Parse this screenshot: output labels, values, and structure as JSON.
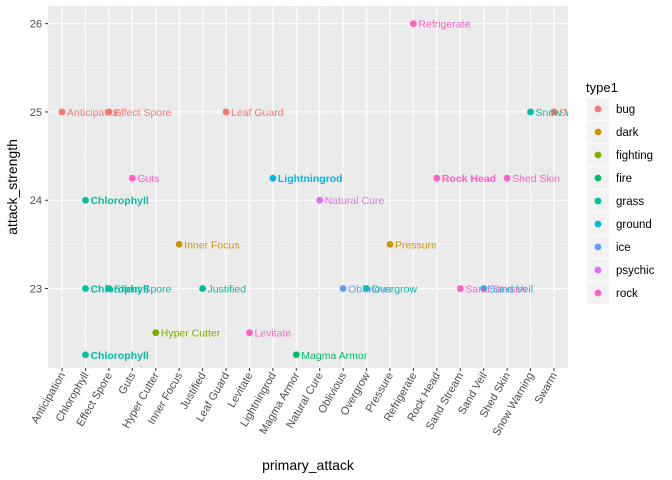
{
  "chart_data": {
    "type": "scatter",
    "xlabel": "primary_attack",
    "ylabel": "attack_strength",
    "categories": [
      "Anticipation",
      "Chlorophyll",
      "Effect Spore",
      "Guts",
      "Hyper Cutter",
      "Inner Focus",
      "Justified",
      "Leaf Guard",
      "Levitate",
      "Lightningrod",
      "Magma Armor",
      "Natural Cure",
      "Oblivious",
      "Overgrow",
      "Pressure",
      "Refrigerate",
      "Rock Head",
      "Sand Stream",
      "Sand Veil",
      "Shed Skin",
      "Snow Warning",
      "Swarm"
    ],
    "ylim": [
      22.1,
      26.2
    ],
    "yticks": [
      23,
      24,
      25,
      26
    ],
    "grid": true,
    "legend": {
      "title": "type1",
      "position": "right",
      "entries": [
        {
          "name": "bug",
          "color": "#F8766D"
        },
        {
          "name": "dark",
          "color": "#CD9600"
        },
        {
          "name": "fighting",
          "color": "#7CAE00"
        },
        {
          "name": "fire",
          "color": "#00BE67"
        },
        {
          "name": "grass",
          "color": "#00BFA0"
        },
        {
          "name": "ground",
          "color": "#00B8E7"
        },
        {
          "name": "ice",
          "color": "#619CFF"
        },
        {
          "name": "psychic",
          "color": "#E26EF7"
        },
        {
          "name": "rock",
          "color": "#FF61C3"
        }
      ]
    },
    "points": [
      {
        "x": "Anticipation",
        "y": 25,
        "type": "bug",
        "label": "Anticipation",
        "bold": false
      },
      {
        "x": "Effect Spore",
        "y": 25,
        "type": "bug",
        "label": "Effect Spore",
        "bold": false
      },
      {
        "x": "Leaf Guard",
        "y": 25,
        "type": "bug",
        "label": "Leaf Guard",
        "bold": false
      },
      {
        "x": "Swarm",
        "y": 25,
        "type": "bug",
        "label": "Swarm",
        "bold": false
      },
      {
        "x": "Inner Focus",
        "y": 23.5,
        "type": "dark",
        "label": "Inner Focus",
        "bold": false
      },
      {
        "x": "Pressure",
        "y": 23.5,
        "type": "dark",
        "label": "Pressure",
        "bold": false
      },
      {
        "x": "Hyper Cutter",
        "y": 22.5,
        "type": "fighting",
        "label": "Hyper Cutter",
        "bold": false
      },
      {
        "x": "Magma Armor",
        "y": 22.25,
        "type": "fire",
        "label": "Magma Armor",
        "bold": false
      },
      {
        "x": "Chlorophyll",
        "y": 24,
        "type": "grass",
        "label": "Chlorophyll",
        "bold": true
      },
      {
        "x": "Chlorophyll",
        "y": 23,
        "type": "grass",
        "label": "Chlorophyll",
        "bold": true
      },
      {
        "x": "Chlorophyll",
        "y": 22.25,
        "type": "grass",
        "label": "Chlorophyll",
        "bold": true
      },
      {
        "x": "Effect Spore",
        "y": 23,
        "type": "grass",
        "label": "Effect Spore",
        "bold": false
      },
      {
        "x": "Justified",
        "y": 23,
        "type": "grass",
        "label": "Justified",
        "bold": false
      },
      {
        "x": "Overgrow",
        "y": 23,
        "type": "grass",
        "label": "Overgrow",
        "bold": false
      },
      {
        "x": "Snow Warning",
        "y": 25,
        "type": "grass",
        "label": "Snow Warning",
        "bold": false
      },
      {
        "x": "Lightningrod",
        "y": 24.25,
        "type": "ground",
        "label": "Lightningrod",
        "bold": true
      },
      {
        "x": "Sand Veil",
        "y": 23,
        "type": "ground",
        "label": "Sand Veil",
        "bold": false
      },
      {
        "x": "Oblivious",
        "y": 23,
        "type": "ice",
        "label": "Oblivious",
        "bold": false
      },
      {
        "x": "Natural Cure",
        "y": 24,
        "type": "psychic",
        "label": "Natural Cure",
        "bold": false
      },
      {
        "x": "Guts",
        "y": 24.25,
        "type": "rock",
        "label": "Guts",
        "bold": false
      },
      {
        "x": "Levitate",
        "y": 22.5,
        "type": "rock",
        "label": "Levitate",
        "bold": false
      },
      {
        "x": "Refrigerate",
        "y": 26,
        "type": "rock",
        "label": "Refrigerate",
        "bold": false
      },
      {
        "x": "Rock Head",
        "y": 24.25,
        "type": "rock",
        "label": "Rock Head",
        "bold": true
      },
      {
        "x": "Sand Stream",
        "y": 23,
        "type": "rock",
        "label": "Sand Stream",
        "bold": false
      },
      {
        "x": "Shed Skin",
        "y": 24.25,
        "type": "rock",
        "label": "Shed Skin",
        "bold": false
      }
    ]
  }
}
